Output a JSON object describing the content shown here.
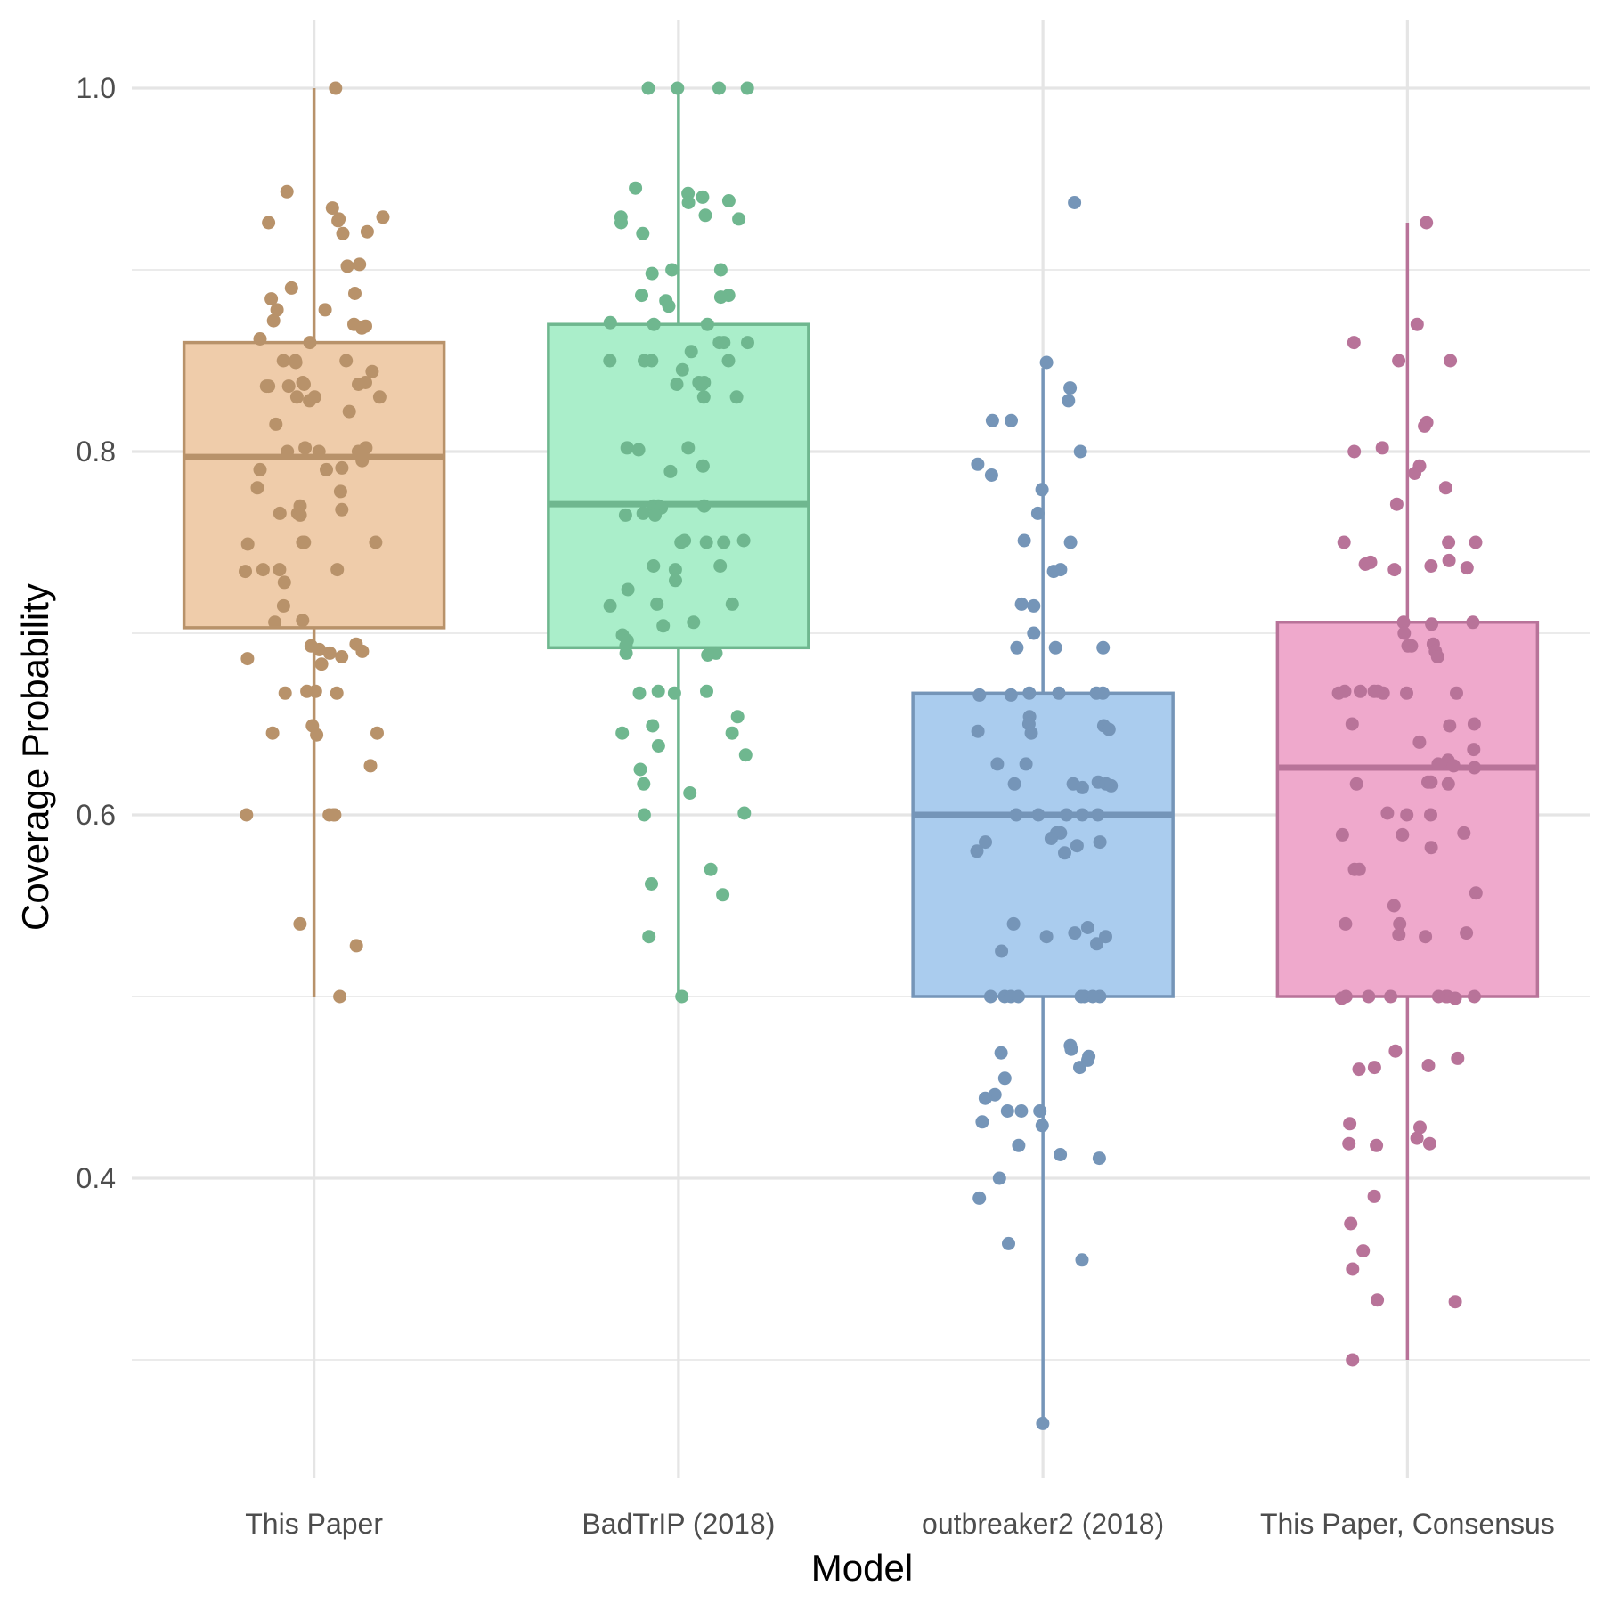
{
  "chart_data": {
    "type": "box",
    "xlabel": "Model",
    "ylabel": "Coverage Probability",
    "ylim": [
      0.27,
      1.04
    ],
    "yticks": [
      0.4,
      0.6,
      0.8,
      1.0
    ],
    "ytick_labels": [
      "0.4",
      "0.6",
      "0.8",
      "1.0"
    ],
    "grid": true,
    "categories": [
      "This Paper",
      "BadTrIP (2018)",
      "outbreaker2 (2018)",
      "This Paper, Consensus"
    ],
    "series": [
      {
        "category": "This Paper",
        "color": "#b8926a",
        "fill": "#efccaa",
        "stats": {
          "whisker_low": 0.5,
          "q1": 0.703,
          "median": 0.797,
          "q3": 0.86,
          "whisker_high": 1.0
        },
        "points": [
          1.0,
          0.943,
          0.934,
          0.929,
          0.928,
          0.927,
          0.926,
          0.921,
          0.92,
          0.903,
          0.902,
          0.89,
          0.887,
          0.884,
          0.878,
          0.878,
          0.872,
          0.87,
          0.869,
          0.868,
          0.862,
          0.86,
          0.85,
          0.85,
          0.85,
          0.849,
          0.844,
          0.838,
          0.838,
          0.837,
          0.837,
          0.836,
          0.836,
          0.836,
          0.83,
          0.83,
          0.83,
          0.828,
          0.822,
          0.815,
          0.802,
          0.802,
          0.8,
          0.8,
          0.8,
          0.795,
          0.791,
          0.79,
          0.79,
          0.78,
          0.778,
          0.77,
          0.768,
          0.766,
          0.766,
          0.765,
          0.75,
          0.75,
          0.75,
          0.749,
          0.735,
          0.735,
          0.735,
          0.734,
          0.728,
          0.715,
          0.707,
          0.706,
          0.694,
          0.693,
          0.691,
          0.69,
          0.689,
          0.687,
          0.686,
          0.683,
          0.668,
          0.668,
          0.667,
          0.667,
          0.649,
          0.645,
          0.645,
          0.644,
          0.627,
          0.6,
          0.6,
          0.6,
          0.6,
          0.54,
          0.528,
          0.5
        ]
      },
      {
        "category": "BadTrIP (2018)",
        "color": "#6fb78f",
        "fill": "#aaeeca",
        "stats": {
          "whisker_low": 0.5,
          "q1": 0.692,
          "median": 0.771,
          "q3": 0.87,
          "whisker_high": 1.0
        },
        "points": [
          1.0,
          1.0,
          1.0,
          1.0,
          0.945,
          0.942,
          0.94,
          0.938,
          0.937,
          0.93,
          0.929,
          0.928,
          0.926,
          0.92,
          0.9,
          0.9,
          0.898,
          0.886,
          0.886,
          0.885,
          0.883,
          0.88,
          0.871,
          0.87,
          0.87,
          0.86,
          0.86,
          0.86,
          0.855,
          0.85,
          0.85,
          0.85,
          0.85,
          0.845,
          0.838,
          0.838,
          0.837,
          0.837,
          0.837,
          0.83,
          0.83,
          0.802,
          0.802,
          0.801,
          0.792,
          0.789,
          0.77,
          0.77,
          0.77,
          0.769,
          0.766,
          0.765,
          0.765,
          0.751,
          0.751,
          0.75,
          0.75,
          0.75,
          0.737,
          0.737,
          0.735,
          0.729,
          0.724,
          0.716,
          0.716,
          0.715,
          0.706,
          0.704,
          0.699,
          0.696,
          0.693,
          0.689,
          0.689,
          0.688,
          0.668,
          0.668,
          0.667,
          0.667,
          0.654,
          0.649,
          0.645,
          0.645,
          0.638,
          0.633,
          0.625,
          0.617,
          0.612,
          0.601,
          0.6,
          0.57,
          0.562,
          0.556,
          0.533,
          0.5
        ]
      },
      {
        "category": "outbreaker2 (2018)",
        "color": "#7595b8",
        "fill": "#aaccee",
        "stats": {
          "whisker_low": 0.265,
          "q1": 0.5,
          "median": 0.6,
          "q3": 0.667,
          "whisker_high": 0.846
        },
        "points": [
          0.937,
          0.849,
          0.835,
          0.828,
          0.817,
          0.817,
          0.8,
          0.793,
          0.787,
          0.779,
          0.766,
          0.751,
          0.75,
          0.735,
          0.734,
          0.716,
          0.715,
          0.7,
          0.692,
          0.692,
          0.692,
          0.667,
          0.667,
          0.667,
          0.667,
          0.666,
          0.666,
          0.654,
          0.65,
          0.649,
          0.647,
          0.646,
          0.645,
          0.628,
          0.628,
          0.618,
          0.617,
          0.617,
          0.617,
          0.616,
          0.615,
          0.6,
          0.6,
          0.6,
          0.6,
          0.6,
          0.59,
          0.59,
          0.587,
          0.585,
          0.585,
          0.583,
          0.58,
          0.579,
          0.54,
          0.538,
          0.535,
          0.533,
          0.533,
          0.529,
          0.525,
          0.5,
          0.5,
          0.5,
          0.5,
          0.5,
          0.5,
          0.5,
          0.5,
          0.473,
          0.471,
          0.469,
          0.467,
          0.465,
          0.461,
          0.455,
          0.446,
          0.444,
          0.437,
          0.437,
          0.437,
          0.429,
          0.431,
          0.418,
          0.413,
          0.411,
          0.4,
          0.389,
          0.364,
          0.355,
          0.265
        ]
      },
      {
        "category": "This Paper, Consensus",
        "color": "#b87399",
        "fill": "#efa9cc",
        "stats": {
          "whisker_low": 0.3,
          "q1": 0.5,
          "median": 0.626,
          "q3": 0.706,
          "whisker_high": 0.926
        },
        "points": [
          0.926,
          0.87,
          0.86,
          0.85,
          0.85,
          0.816,
          0.814,
          0.802,
          0.8,
          0.792,
          0.788,
          0.78,
          0.771,
          0.75,
          0.75,
          0.75,
          0.74,
          0.739,
          0.738,
          0.737,
          0.736,
          0.735,
          0.706,
          0.706,
          0.705,
          0.7,
          0.694,
          0.693,
          0.693,
          0.69,
          0.687,
          0.668,
          0.668,
          0.668,
          0.668,
          0.667,
          0.667,
          0.667,
          0.667,
          0.65,
          0.65,
          0.649,
          0.64,
          0.636,
          0.63,
          0.628,
          0.627,
          0.626,
          0.618,
          0.618,
          0.617,
          0.617,
          0.601,
          0.6,
          0.6,
          0.59,
          0.589,
          0.589,
          0.582,
          0.57,
          0.57,
          0.557,
          0.55,
          0.54,
          0.54,
          0.535,
          0.534,
          0.533,
          0.5,
          0.5,
          0.5,
          0.5,
          0.5,
          0.5,
          0.5,
          0.499,
          0.499,
          0.47,
          0.466,
          0.462,
          0.461,
          0.46,
          0.43,
          0.428,
          0.422,
          0.419,
          0.419,
          0.418,
          0.39,
          0.375,
          0.36,
          0.35,
          0.333,
          0.332,
          0.3
        ]
      }
    ]
  }
}
